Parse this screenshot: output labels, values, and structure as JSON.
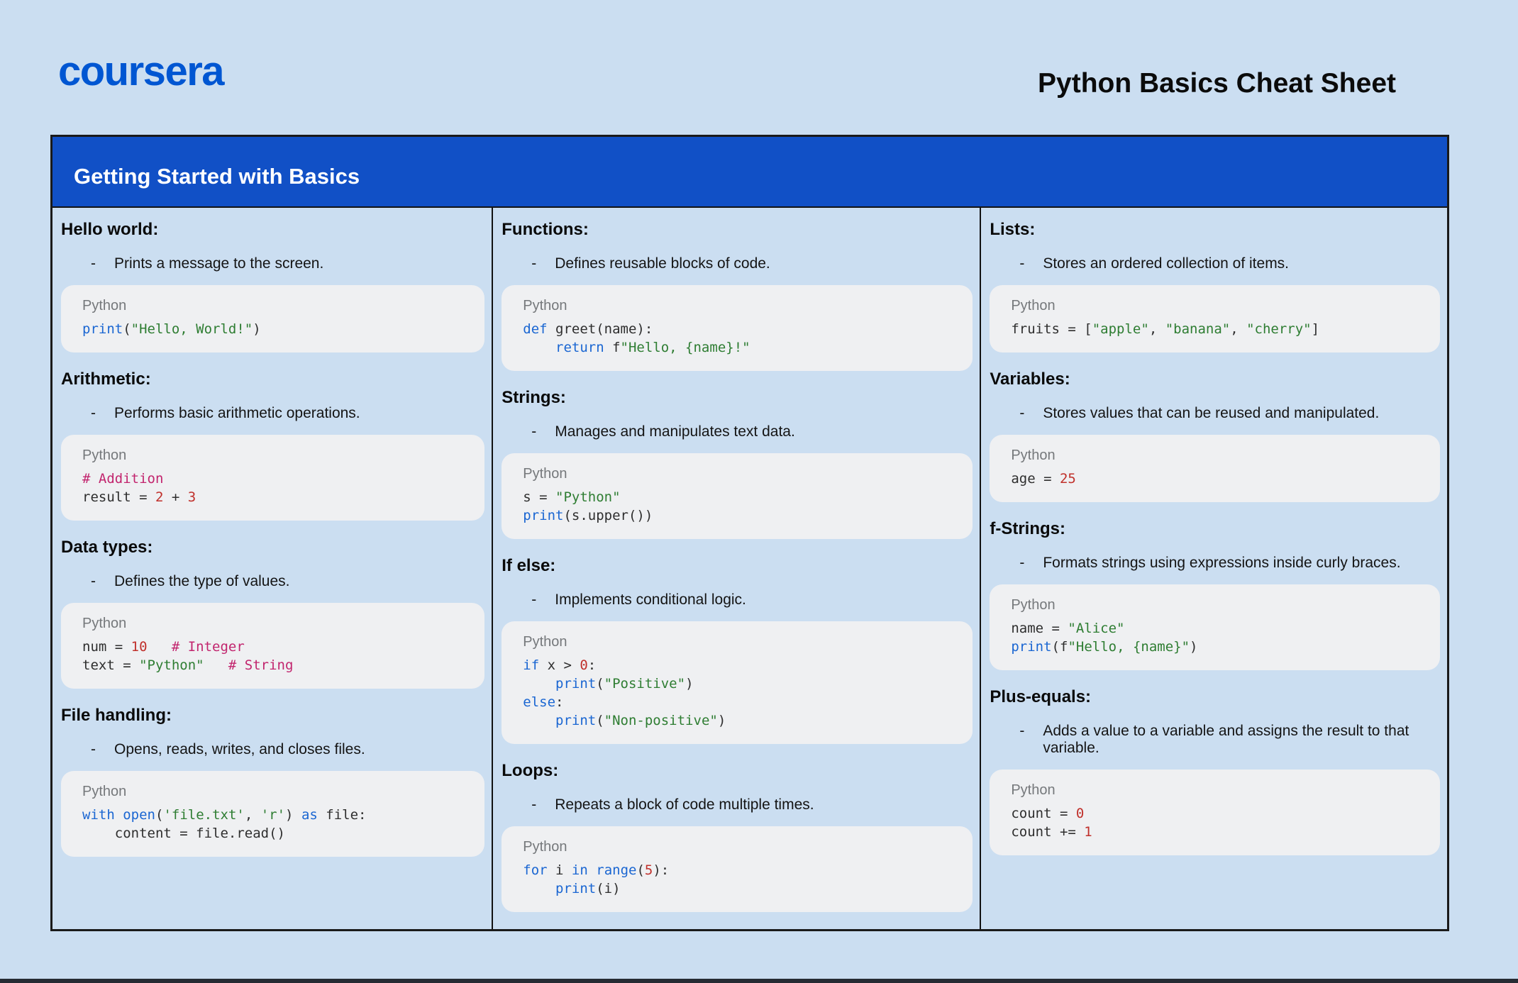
{
  "header": {
    "logo": "coursera",
    "title": "Python Basics Cheat Sheet"
  },
  "banner": {
    "title": "Getting Started with Basics"
  },
  "code_language_label": "Python",
  "colors": {
    "page_bg": "#CBDEF1",
    "brand_blue": "#0056D2",
    "banner_blue": "#1150C6",
    "banner_text": "#FFFFFF",
    "box_border": "#1A1A1A",
    "code_bg": "#EFF0F2",
    "code_label": "#75787B",
    "code_default": "#2E2E2E",
    "syntax_keyword": "#1A66D2",
    "syntax_string": "#2E7D32",
    "syntax_number": "#C0302B",
    "syntax_comment": "#C2256E",
    "text": "#111111",
    "bottom_strip": "#262B33"
  },
  "columns": [
    {
      "sections": [
        {
          "id": "hello-world",
          "heading": "Hello world:",
          "description": "Prints a message to the screen.",
          "code": [
            [
              [
                "kw",
                "print"
              ],
              [
                "pl",
                "("
              ],
              [
                "str",
                "\"Hello, World!\""
              ],
              [
                "pl",
                ")"
              ]
            ]
          ]
        },
        {
          "id": "arithmetic",
          "heading": "Arithmetic:",
          "description": "Performs basic arithmetic operations.",
          "code": [
            [
              [
                "com",
                "# Addition"
              ]
            ],
            [
              [
                "pl",
                "result = "
              ],
              [
                "num",
                "2"
              ],
              [
                "pl",
                " + "
              ],
              [
                "num",
                "3"
              ]
            ]
          ]
        },
        {
          "id": "data-types",
          "heading": "Data types:",
          "description": "Defines the type of values.",
          "code": [
            [
              [
                "pl",
                "num = "
              ],
              [
                "num",
                "10"
              ],
              [
                "pl",
                "   "
              ],
              [
                "com",
                "# Integer"
              ]
            ],
            [
              [
                "pl",
                "text = "
              ],
              [
                "str",
                "\"Python\""
              ],
              [
                "pl",
                "   "
              ],
              [
                "com",
                "# String"
              ]
            ]
          ]
        },
        {
          "id": "file-handling",
          "heading": "File handling:",
          "description": "Opens, reads, writes, and closes files.",
          "code": [
            [
              [
                "kw",
                "with"
              ],
              [
                "pl",
                " "
              ],
              [
                "kw",
                "open"
              ],
              [
                "pl",
                "("
              ],
              [
                "str",
                "'file.txt'"
              ],
              [
                "pl",
                ", "
              ],
              [
                "str",
                "'r'"
              ],
              [
                "pl",
                ") "
              ],
              [
                "kw",
                "as"
              ],
              [
                "pl",
                " file:"
              ]
            ],
            [
              [
                "pl",
                "    content = file.read()"
              ]
            ]
          ]
        }
      ]
    },
    {
      "sections": [
        {
          "id": "functions",
          "heading": "Functions:",
          "description": "Defines reusable blocks of code.",
          "code": [
            [
              [
                "kw",
                "def"
              ],
              [
                "pl",
                " greet(name):"
              ]
            ],
            [
              [
                "pl",
                "    "
              ],
              [
                "kw",
                "return"
              ],
              [
                "pl",
                " f"
              ],
              [
                "str",
                "\"Hello, {name}!\""
              ]
            ]
          ]
        },
        {
          "id": "strings",
          "heading": "Strings:",
          "description": "Manages and manipulates text data.",
          "code": [
            [
              [
                "pl",
                "s = "
              ],
              [
                "str",
                "\"Python\""
              ]
            ],
            [
              [
                "kw",
                "print"
              ],
              [
                "pl",
                "(s.upper())"
              ]
            ]
          ]
        },
        {
          "id": "if-else",
          "heading": "If else:",
          "description": "Implements conditional logic.",
          "code": [
            [
              [
                "kw",
                "if"
              ],
              [
                "pl",
                " x > "
              ],
              [
                "num",
                "0"
              ],
              [
                "pl",
                ":"
              ]
            ],
            [
              [
                "pl",
                "    "
              ],
              [
                "kw",
                "print"
              ],
              [
                "pl",
                "("
              ],
              [
                "str",
                "\"Positive\""
              ],
              [
                "pl",
                ")"
              ]
            ],
            [
              [
                "kw",
                "else"
              ],
              [
                "pl",
                ":"
              ]
            ],
            [
              [
                "pl",
                "    "
              ],
              [
                "kw",
                "print"
              ],
              [
                "pl",
                "("
              ],
              [
                "str",
                "\"Non-positive\""
              ],
              [
                "pl",
                ")"
              ]
            ]
          ]
        },
        {
          "id": "loops",
          "heading": "Loops:",
          "description": "Repeats a block of code multiple times.",
          "code": [
            [
              [
                "kw",
                "for"
              ],
              [
                "pl",
                " i "
              ],
              [
                "kw",
                "in"
              ],
              [
                "pl",
                " "
              ],
              [
                "kw",
                "range"
              ],
              [
                "pl",
                "("
              ],
              [
                "num",
                "5"
              ],
              [
                "pl",
                "):"
              ]
            ],
            [
              [
                "pl",
                "    "
              ],
              [
                "kw",
                "print"
              ],
              [
                "pl",
                "(i)"
              ]
            ]
          ]
        }
      ]
    },
    {
      "sections": [
        {
          "id": "lists",
          "heading": "Lists:",
          "description": "Stores an ordered collection of items.",
          "code": [
            [
              [
                "pl",
                "fruits = ["
              ],
              [
                "str",
                "\"apple\""
              ],
              [
                "pl",
                ", "
              ],
              [
                "str",
                "\"banana\""
              ],
              [
                "pl",
                ", "
              ],
              [
                "str",
                "\"cherry\""
              ],
              [
                "pl",
                "]"
              ]
            ]
          ]
        },
        {
          "id": "variables",
          "heading": "Variables:",
          "description": "Stores values that can be reused and manipulated.",
          "code": [
            [
              [
                "pl",
                "age = "
              ],
              [
                "num",
                "25"
              ]
            ]
          ]
        },
        {
          "id": "f-strings",
          "heading": "f-Strings:",
          "description": "Formats strings using expressions inside curly braces.",
          "code": [
            [
              [
                "pl",
                "name = "
              ],
              [
                "str",
                "\"Alice\""
              ]
            ],
            [
              [
                "kw",
                "print"
              ],
              [
                "pl",
                "(f"
              ],
              [
                "str",
                "\"Hello, {name}\""
              ],
              [
                "pl",
                ")"
              ]
            ]
          ]
        },
        {
          "id": "plus-equals",
          "heading": "Plus-equals:",
          "description": "Adds a value to a variable and assigns the result to that variable.",
          "code": [
            [
              [
                "pl",
                "count = "
              ],
              [
                "num",
                "0"
              ]
            ],
            [
              [
                "pl",
                "count += "
              ],
              [
                "num",
                "1"
              ]
            ]
          ]
        }
      ]
    }
  ]
}
